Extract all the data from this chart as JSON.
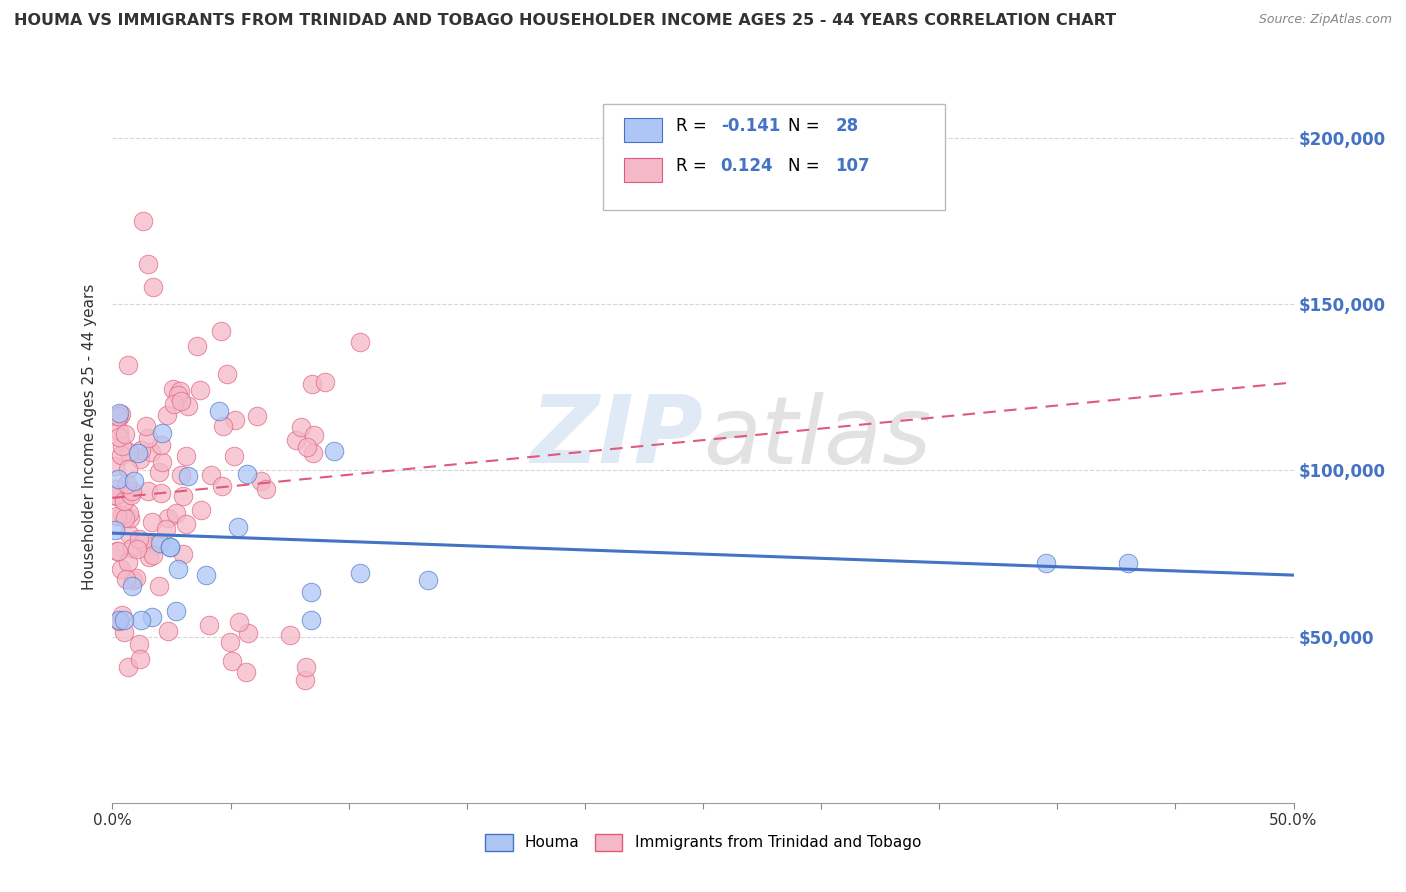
{
  "title": "HOUMA VS IMMIGRANTS FROM TRINIDAD AND TOBAGO HOUSEHOLDER INCOME AGES 25 - 44 YEARS CORRELATION CHART",
  "source": "Source: ZipAtlas.com",
  "ylabel": "Householder Income Ages 25 - 44 years",
  "xlim": [
    0.0,
    0.5
  ],
  "ylim": [
    0,
    220000
  ],
  "ytick_values": [
    50000,
    100000,
    150000,
    200000
  ],
  "ytick_labels": [
    "$50,000",
    "$100,000",
    "$150,000",
    "$200,000"
  ],
  "houma_color": "#aec6f5",
  "houma_edge_color": "#4472c4",
  "houma_line_color": "#4472c4",
  "trinidad_color": "#f4b8c8",
  "trinidad_edge_color": "#e05a7a",
  "trinidad_line_color": "#e05a7a",
  "houma_R": -0.141,
  "houma_N": 28,
  "trinidad_R": 0.124,
  "trinidad_N": 107,
  "legend_label_houma": "Houma",
  "legend_label_trinidad": "Immigrants from Trinidad and Tobago",
  "watermark_zip_color": "#c8d8f0",
  "watermark_atlas_color": "#c0c0c0"
}
